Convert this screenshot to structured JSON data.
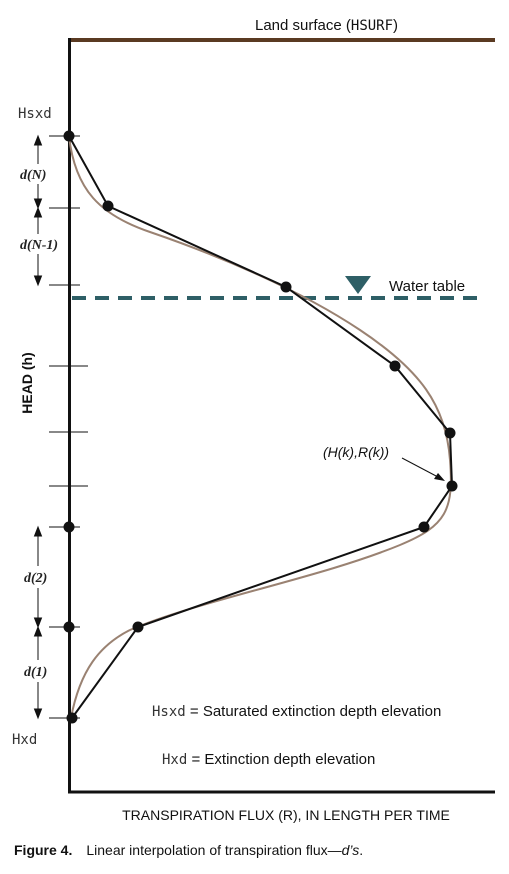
{
  "land_surface_label": "Land surface (",
  "land_surface_code": "HSURF",
  "land_surface_close": ")",
  "water_table_label": "Water table",
  "y_axis_label": "HEAD (h)",
  "x_axis_label": "TRANSPIRATION FLUX (R), IN LENGTH PER TIME",
  "hsxd_label": "Hsxd",
  "hxd_label": "Hxd",
  "segment_labels": [
    "d(N)",
    "d(N-1)",
    "d(2)",
    "d(1)"
  ],
  "point_label": "(H(k),R(k))",
  "legend": {
    "hsxd_code": "Hsxd",
    "hsxd_eq": " = ",
    "hsxd_desc": "Saturated extinction depth elevation",
    "hxd_code": "Hxd",
    "hxd_eq": " = ",
    "hxd_desc": "Extinction depth elevation"
  },
  "caption": {
    "label": "Figure 4.",
    "text_before": "Linear interpolation of transpiration flux—",
    "text_italic": "d’s",
    "text_after": "."
  },
  "colors": {
    "land_surface": "#5a3a22",
    "water_table": "#2e5f66",
    "curve": "#9a8272",
    "line": "#111111"
  }
}
